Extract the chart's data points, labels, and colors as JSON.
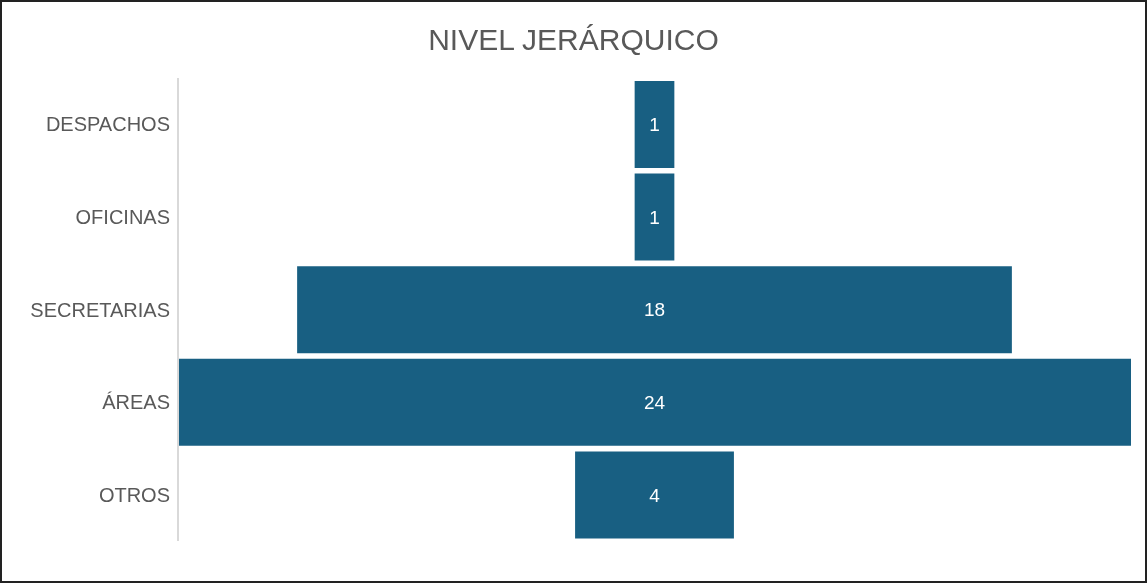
{
  "chart_data": {
    "type": "other",
    "title": "NIVEL JERÁRQUICO",
    "categories": [
      "DESPACHOS",
      "OFICINAS",
      "SECRETARIAS",
      "ÁREAS",
      "OTROS"
    ],
    "values": [
      1,
      1,
      18,
      24,
      4
    ],
    "color": "#185f82",
    "data_labels": true
  }
}
